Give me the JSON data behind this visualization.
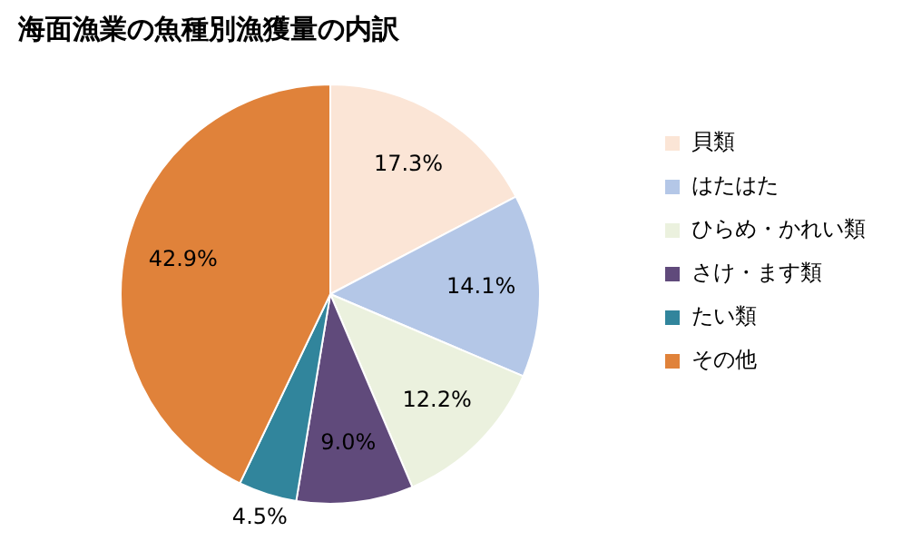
{
  "chart_data": {
    "type": "pie",
    "title": "海面漁業の魚種別漁獲量の内訳",
    "categories": [
      "貝類",
      "はたはた",
      "ひらめ・かれい類",
      "さけ・ます類",
      "たい類",
      "その他"
    ],
    "values": [
      17.3,
      14.1,
      12.2,
      9.0,
      4.5,
      42.9
    ],
    "colors": [
      "#fbe5d6",
      "#b4c7e7",
      "#ebf1de",
      "#604a7b",
      "#31859c",
      "#e0823a"
    ],
    "value_labels": [
      "17.3%",
      "14.1%",
      "12.2%",
      "9.0%",
      "4.5%",
      "42.9%"
    ],
    "legend": "right"
  }
}
